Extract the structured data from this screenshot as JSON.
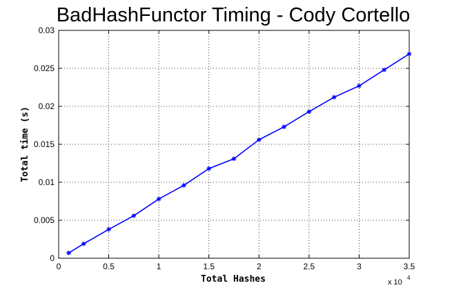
{
  "chart_data": {
    "type": "line",
    "title": "BadHashFunctor Timing - Cody Cortello",
    "xlabel": "Total Hashes",
    "ylabel": "Total time (s)",
    "x_multiplier_base": "x 10",
    "x_multiplier_exp": "4",
    "xlim": [
      0,
      35000
    ],
    "ylim": [
      0,
      0.03
    ],
    "xticks": [
      0,
      5000,
      10000,
      15000,
      20000,
      25000,
      30000,
      35000
    ],
    "xtick_labels": [
      "0",
      "0.5",
      "1",
      "1.5",
      "2",
      "2.5",
      "3",
      "3.5"
    ],
    "yticks": [
      0,
      0.005,
      0.01,
      0.015,
      0.02,
      0.025,
      0.03
    ],
    "ytick_labels": [
      "0",
      "0.005",
      "0.01",
      "0.015",
      "0.02",
      "0.025",
      "0.03"
    ],
    "grid": true,
    "line_color": "#0000ff",
    "series": [
      {
        "x": [
          1000,
          2500,
          5000,
          7500,
          10000,
          12500,
          15000,
          17500,
          20000,
          22500,
          25000,
          27500,
          30000,
          32500,
          35000
        ],
        "values": [
          0.0007,
          0.0019,
          0.0038,
          0.0056,
          0.0078,
          0.0096,
          0.0118,
          0.0131,
          0.0156,
          0.0173,
          0.0193,
          0.0212,
          0.0227,
          0.0248,
          0.0269
        ]
      }
    ]
  }
}
